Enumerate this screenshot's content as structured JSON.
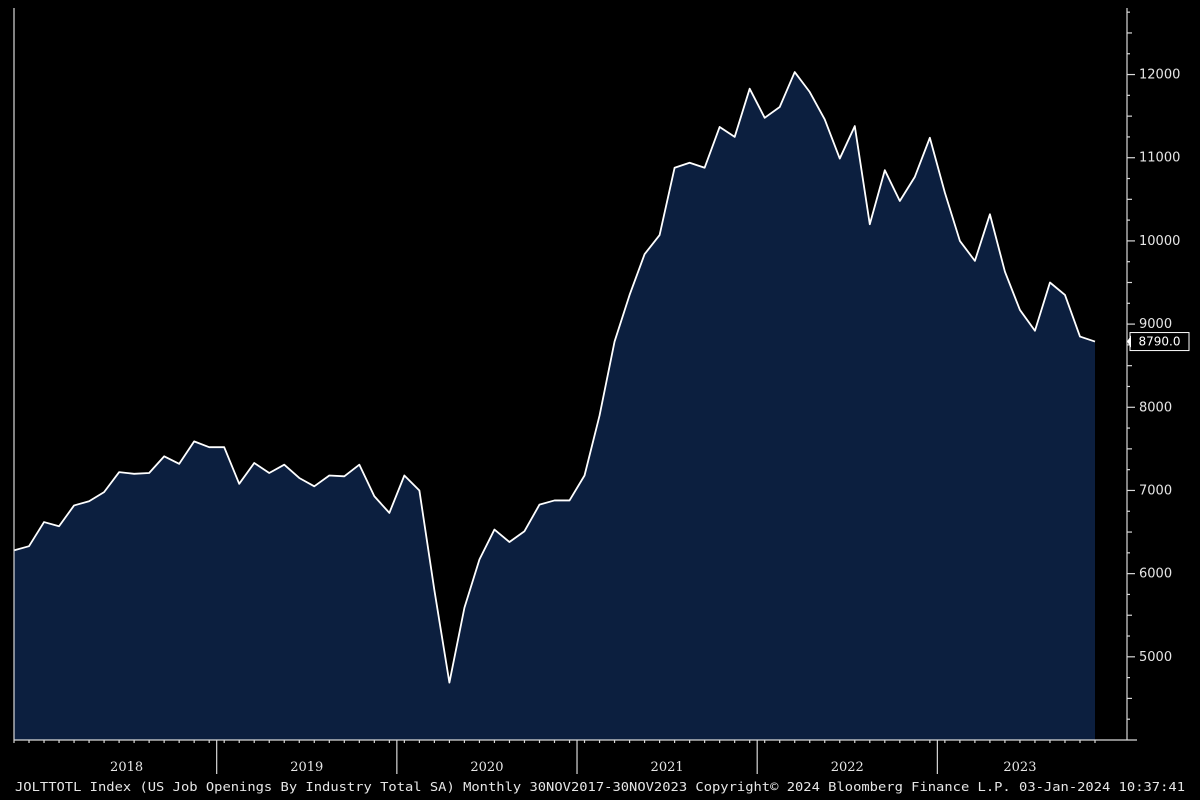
{
  "colors": {
    "background": "#000000",
    "area_fill": "#0c1f3f",
    "line": "#ffffff",
    "axis": "#d9d9d9",
    "text": "#e6e6e6",
    "label_box_fill": "#000000"
  },
  "footer": {
    "text": "JOLTTOTL Index (US Job Openings By Industry Total SA) Monthly 30NOV2017-30NOV2023 Copyright© 2024 Bloomberg Finance L.P. 03-Jan-2024 10:37:41"
  },
  "last_value_label": "8790.0",
  "chart_data": {
    "type": "area",
    "title": "",
    "xlabel": "",
    "ylabel": "",
    "y_axis_side": "right",
    "ylim": [
      4000,
      12800
    ],
    "y_ticks": [
      5000,
      6000,
      7000,
      8000,
      9000,
      10000,
      11000,
      12000
    ],
    "y_tick_labels": [
      "5000",
      "6000",
      "7000",
      "8000",
      "9000",
      "10000",
      "11000",
      "12000"
    ],
    "x_year_labels": [
      "2018",
      "2019",
      "2020",
      "2021",
      "2022",
      "2023"
    ],
    "x_start": "2017-11",
    "x_end": "2023-11",
    "grid": false,
    "legend": "none",
    "series": [
      {
        "values": [
          6280,
          6330,
          6620,
          6570,
          6820,
          6870,
          6980,
          7220,
          7200,
          7210,
          7410,
          7320,
          7590,
          7520,
          7520,
          7080,
          7330,
          7210,
          7310,
          7150,
          7050,
          7180,
          7170,
          7310,
          6930,
          6730,
          7180,
          7000,
          5800,
          4690,
          5590,
          6170,
          6530,
          6380,
          6510,
          6830,
          6880,
          6880,
          7180,
          7900,
          8790,
          9350,
          9840,
          10070,
          10880,
          10940,
          10880,
          11370,
          11250,
          11830,
          11480,
          11610,
          12030,
          11790,
          11460,
          10990,
          11380,
          10200,
          10850,
          10480,
          10770,
          11240,
          10580,
          10000,
          9760,
          10320,
          9630,
          9170,
          8920,
          9500,
          9350,
          8850,
          8790
        ]
      }
    ]
  }
}
